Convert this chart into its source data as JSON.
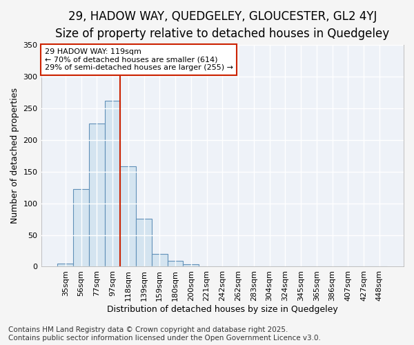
{
  "title_line1": "29, HADOW WAY, QUEDGELEY, GLOUCESTER, GL2 4YJ",
  "title_line2": "Size of property relative to detached houses in Quedgeley",
  "xlabel": "Distribution of detached houses by size in Quedgeley",
  "ylabel": "Number of detached properties",
  "categories": [
    "35sqm",
    "56sqm",
    "77sqm",
    "97sqm",
    "118sqm",
    "139sqm",
    "159sqm",
    "180sqm",
    "200sqm",
    "221sqm",
    "242sqm",
    "262sqm",
    "283sqm",
    "304sqm",
    "324sqm",
    "345sqm",
    "365sqm",
    "386sqm",
    "407sqm",
    "427sqm",
    "448sqm"
  ],
  "values": [
    5,
    123,
    226,
    262,
    158,
    76,
    20,
    9,
    4,
    1,
    0,
    0,
    0,
    0,
    0,
    0,
    0,
    0,
    0,
    0,
    1
  ],
  "bar_color": "#d4e4f0",
  "bar_edge_color": "#6090b8",
  "vline_index": 3.5,
  "vline_color": "#cc2200",
  "annotation_text": "29 HADOW WAY: 119sqm\n← 70% of detached houses are smaller (614)\n29% of semi-detached houses are larger (255) →",
  "annotation_box_facecolor": "#ffffff",
  "annotation_box_edgecolor": "#cc2200",
  "ylim_max": 350,
  "yticks": [
    0,
    50,
    100,
    150,
    200,
    250,
    300,
    350
  ],
  "footer_line1": "Contains HM Land Registry data © Crown copyright and database right 2025.",
  "footer_line2": "Contains public sector information licensed under the Open Government Licence v3.0.",
  "bg_color": "#f5f5f5",
  "plot_bg_color": "#eef2f8",
  "grid_color": "#ffffff",
  "title_fontsize": 12,
  "subtitle_fontsize": 10,
  "axis_label_fontsize": 9,
  "tick_fontsize": 8,
  "annotation_fontsize": 8,
  "footer_fontsize": 7.5
}
